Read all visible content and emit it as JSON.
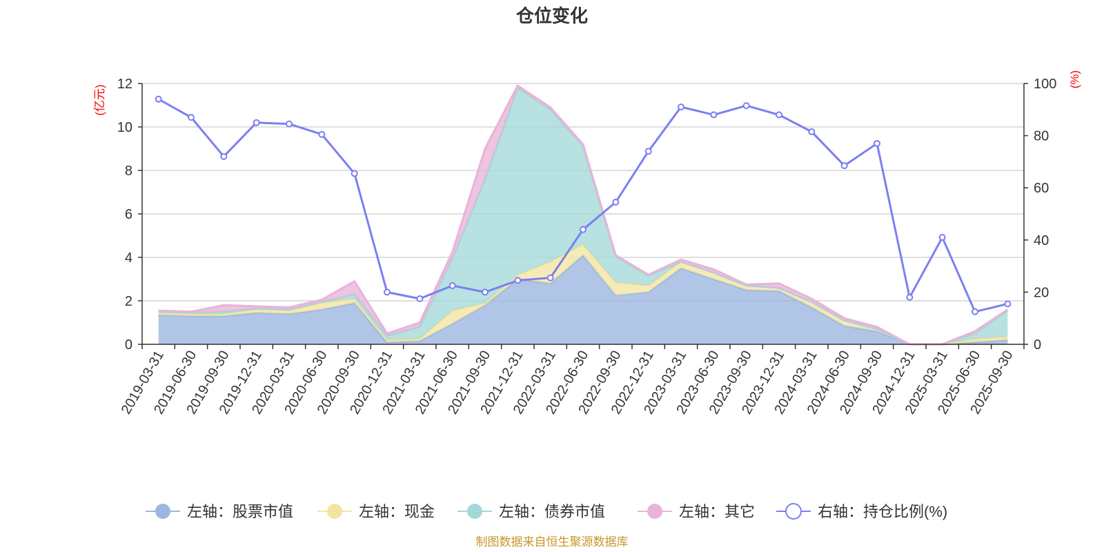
{
  "chart_data": {
    "type": "area",
    "title": "仓位变化",
    "left_unit": "(亿元)",
    "right_unit": "(%)",
    "x": [
      "2019-03-31",
      "2019-06-30",
      "2019-09-30",
      "2019-12-31",
      "2020-03-31",
      "2020-06-30",
      "2020-09-30",
      "2020-12-31",
      "2021-03-31",
      "2021-06-30",
      "2021-09-30",
      "2021-12-31",
      "2022-03-31",
      "2022-06-30",
      "2022-09-30",
      "2022-12-31",
      "2023-03-31",
      "2023-06-30",
      "2023-09-30",
      "2023-12-31",
      "2024-03-31",
      "2024-06-30",
      "2024-09-30",
      "2024-12-31",
      "2025-03-31",
      "2025-06-30",
      "2025-09-30"
    ],
    "y_left": {
      "min": 0,
      "max": 12,
      "ticks": [
        "0",
        "2",
        "4",
        "6",
        "8",
        "10",
        "12"
      ]
    },
    "y_right": {
      "min": 0,
      "max": 100,
      "ticks": [
        "0",
        "20",
        "40",
        "60",
        "80",
        "100"
      ]
    },
    "series": [
      {
        "name": "左轴：股票市值",
        "axis": "left",
        "color": "#9bb6e0",
        "values": [
          1.35,
          1.3,
          1.3,
          1.45,
          1.4,
          1.6,
          1.9,
          0.1,
          0.15,
          0.95,
          1.8,
          3.0,
          2.8,
          4.1,
          2.25,
          2.4,
          3.5,
          3.0,
          2.5,
          2.45,
          1.7,
          0.85,
          0.6,
          0.0,
          0.0,
          0.1,
          0.2
        ]
      },
      {
        "name": "左轴：现金",
        "axis": "left",
        "color": "#f4e4a0",
        "values": [
          0.1,
          0.1,
          0.1,
          0.15,
          0.15,
          0.3,
          0.2,
          0.1,
          0.1,
          0.6,
          0.1,
          0.2,
          1.0,
          0.5,
          0.6,
          0.3,
          0.3,
          0.3,
          0.2,
          0.15,
          0.25,
          0.25,
          0.1,
          0.0,
          0.0,
          0.15,
          0.15
        ]
      },
      {
        "name": "左轴：债券市值",
        "axis": "left",
        "color": "#a4d8d8",
        "values": [
          0.05,
          0.05,
          0.1,
          0.05,
          0.05,
          0.05,
          0.2,
          0.2,
          0.55,
          2.4,
          5.7,
          8.6,
          7.0,
          4.5,
          1.2,
          0.45,
          0.0,
          0.0,
          0.0,
          0.0,
          0.0,
          0.0,
          0.0,
          0.0,
          0.0,
          0.25,
          1.2
        ]
      },
      {
        "name": "左轴：其它",
        "axis": "left",
        "color": "#e8b4d8",
        "values": [
          0.05,
          0.05,
          0.3,
          0.1,
          0.1,
          0.1,
          0.6,
          0.1,
          0.2,
          0.3,
          1.4,
          0.1,
          0.1,
          0.1,
          0.05,
          0.05,
          0.1,
          0.15,
          0.05,
          0.2,
          0.15,
          0.1,
          0.1,
          0.0,
          0.0,
          0.1,
          0.05
        ]
      },
      {
        "name": "右轴：持仓比例(%)",
        "axis": "right",
        "color": "#7b7ff0",
        "values": [
          94,
          87,
          72,
          85,
          84.5,
          80.5,
          65.5,
          20,
          17.5,
          22.5,
          20,
          24.5,
          25.5,
          44,
          54.5,
          74,
          91,
          88,
          91.5,
          88,
          81.5,
          68.5,
          77,
          18,
          41,
          12.5,
          15.5
        ]
      }
    ],
    "legend_position": "bottom",
    "source": "制图数据来自恒生聚源数据库"
  }
}
